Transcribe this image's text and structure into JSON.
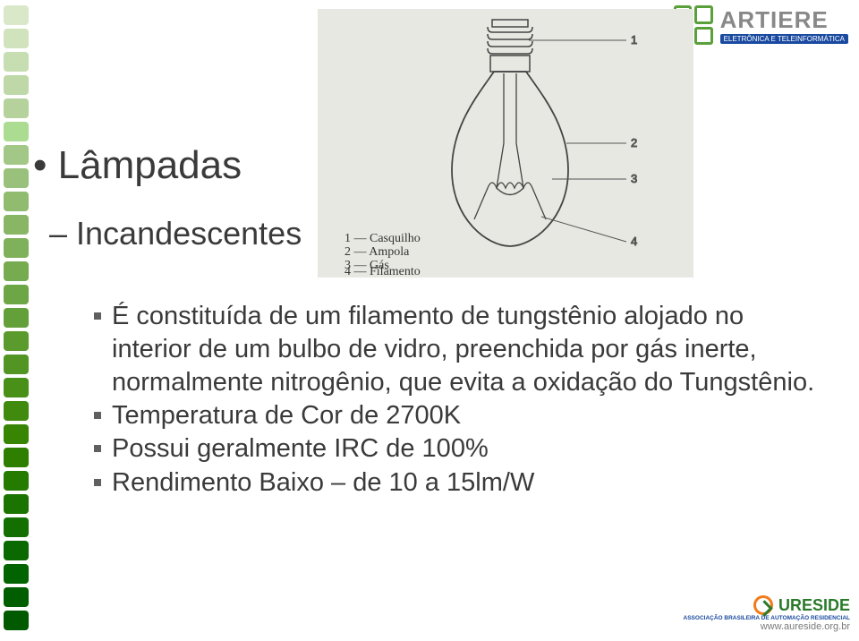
{
  "deco": {
    "colors": [
      "#d9e8c8",
      "#d0e3bd",
      "#c7ddb2",
      "#bed8a7",
      "#b5d29c",
      "#acdc91",
      "#a3c786",
      "#9ac17b",
      "#91bc70",
      "#88b665",
      "#7fb15a",
      "#76ab4f",
      "#6da644",
      "#64a039",
      "#5b9b2e",
      "#529523",
      "#499018",
      "#408a0d",
      "#378502",
      "#2e7f00",
      "#257a00",
      "#1c7400",
      "#136f00",
      "#0a6900",
      "#016400",
      "#015e00",
      "#015900"
    ]
  },
  "title": "Lâmpadas",
  "subtitle": "Incandescentes",
  "diagram": {
    "bg": "#e6e6e0",
    "legend_title": "",
    "legend": [
      {
        "n": "1",
        "label": "Casquilho"
      },
      {
        "n": "2",
        "label": "Ampola"
      },
      {
        "n": "3",
        "label": "Gás"
      },
      {
        "n": "4",
        "label": "Filamento"
      }
    ],
    "callouts": [
      "1",
      "2",
      "3",
      "4"
    ]
  },
  "bullets": [
    "É constituída de um filamento de tungstênio alojado no interior de um bulbo de vidro, preenchida por gás inerte, normalmente nitrogênio, que evita a oxidação do Tungstênio.",
    "Temperatura de Cor de 2700K",
    "Possui geralmente IRC de 100%",
    "Rendimento Baixo – de 10 a 15lm/W"
  ],
  "artiere": {
    "name": "ARTIERE",
    "tag": "ELETRÔNICA E TELEINFORMÁTICA"
  },
  "aureside": {
    "name": "URESIDE",
    "sub": "ASSOCIAÇÃO BRASILEIRA DE AUTOMAÇÃO RESIDENCIAL",
    "url": "www.aureside.org.br"
  }
}
